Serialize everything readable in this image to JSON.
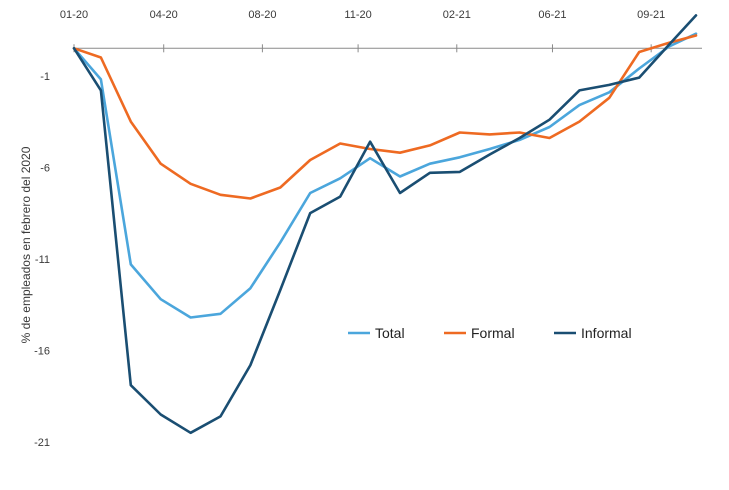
{
  "chart_data": {
    "type": "line",
    "ylabel": "% de empleados en febrero del 2020",
    "ylim": [
      -21,
      1.5
    ],
    "yticks": [
      -1,
      -6,
      -11,
      -16,
      -21
    ],
    "xlim": [
      0,
      21
    ],
    "xticks": [
      {
        "label": "01-20",
        "x": 0
      },
      {
        "label": "04-20",
        "x": 3
      },
      {
        "label": "08-20",
        "x": 6.3
      },
      {
        "label": "11-20",
        "x": 9.5
      },
      {
        "label": "02-21",
        "x": 12.8
      },
      {
        "label": "06-21",
        "x": 16
      },
      {
        "label": "09-21",
        "x": 19.3
      }
    ],
    "x": [
      0,
      0.9,
      1.9,
      2.9,
      3.9,
      4.9,
      5.9,
      6.9,
      7.9,
      8.9,
      9.9,
      10.9,
      11.9,
      12.9,
      13.9,
      14.9,
      15.9,
      16.9,
      17.9,
      18.9,
      19.9,
      20.8
    ],
    "series": [
      {
        "name": "Total",
        "color": "#4ba6dc",
        "values": [
          0.5,
          -1.2,
          -11.3,
          -13.2,
          -14.2,
          -14.0,
          -12.6,
          -10.1,
          -7.4,
          -6.6,
          -5.5,
          -6.5,
          -5.8,
          -5.45,
          -5.0,
          -4.5,
          -3.8,
          -2.6,
          -1.9,
          -0.6,
          0.6,
          1.3
        ]
      },
      {
        "name": "Formal",
        "color": "#ee6a22",
        "values": [
          0.5,
          0.0,
          -3.5,
          -5.8,
          -6.9,
          -7.5,
          -7.7,
          -7.1,
          -5.6,
          -4.7,
          -5.0,
          -5.2,
          -4.8,
          -4.1,
          -4.2,
          -4.1,
          -4.4,
          -3.5,
          -2.2,
          0.3,
          0.8,
          1.2
        ]
      },
      {
        "name": "Informal",
        "color": "#1a4e72",
        "values": [
          0.5,
          -1.8,
          -17.9,
          -19.5,
          -20.5,
          -19.6,
          -16.8,
          -12.7,
          -8.5,
          -7.6,
          -4.6,
          -7.4,
          -6.3,
          -6.25,
          -5.3,
          -4.4,
          -3.4,
          -1.8,
          -1.5,
          -1.1,
          0.7,
          2.3
        ]
      }
    ],
    "legend_position": "center-right"
  }
}
